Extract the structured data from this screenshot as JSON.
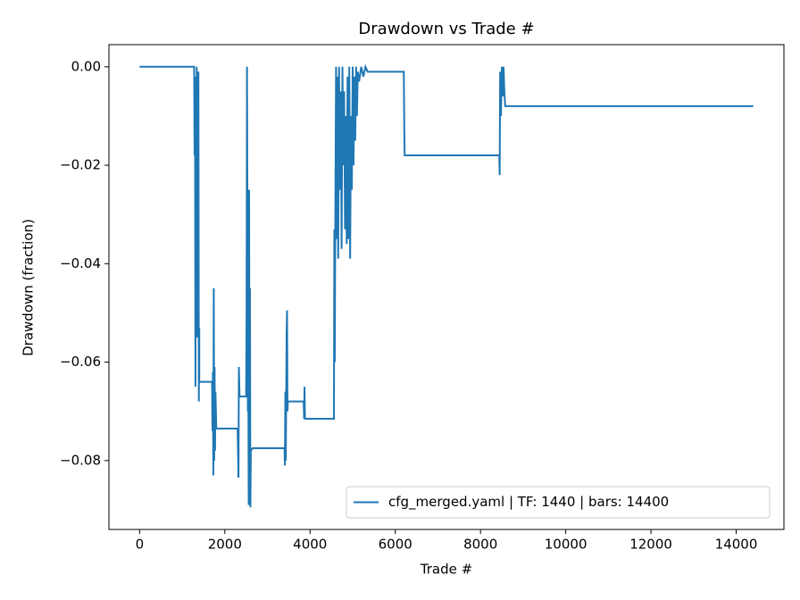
{
  "chart_data": {
    "type": "line",
    "title": "Drawdown vs Trade #",
    "xlabel": "Trade #",
    "ylabel": "Drawdown (fraction)",
    "xlim": [
      -720,
      15120
    ],
    "ylim": [
      -0.094,
      0.0045
    ],
    "xticks": [
      0,
      2000,
      4000,
      6000,
      8000,
      10000,
      12000,
      14000
    ],
    "yticks": [
      {
        "value": -0.08,
        "label": "−0.08"
      },
      {
        "value": -0.06,
        "label": "−0.06"
      },
      {
        "value": -0.04,
        "label": "−0.04"
      },
      {
        "value": -0.02,
        "label": "−0.02"
      },
      {
        "value": 0,
        "label": "0.00"
      }
    ],
    "grid": false,
    "legend": "lower right",
    "x": [
      0,
      1280,
      1290,
      1300,
      1310,
      1320,
      1330,
      1340,
      1350,
      1360,
      1370,
      1380,
      1390,
      1400,
      1400,
      1700,
      1710,
      1720,
      1730,
      1740,
      1750,
      1760,
      1770,
      1780,
      1800,
      2300,
      2320,
      2330,
      2345,
      2500,
      2510,
      2520,
      2530,
      2540,
      2550,
      2560,
      2570,
      2580,
      2590,
      2600,
      2610,
      2650,
      3400,
      3410,
      3420,
      3430,
      3450,
      3460,
      3470,
      3480,
      3850,
      3860,
      3870,
      3880,
      4560,
      4570,
      4580,
      4590,
      4610,
      4620,
      4640,
      4660,
      4680,
      4700,
      4720,
      4740,
      4760,
      4780,
      4800,
      4820,
      4840,
      4860,
      4880,
      4900,
      4920,
      4940,
      4960,
      4980,
      5000,
      5020,
      5040,
      5060,
      5080,
      5100,
      5120,
      5150,
      5200,
      5250,
      5300,
      5350,
      6200,
      6210,
      6220,
      8440,
      8450,
      8460,
      8480,
      8500,
      8520,
      8540,
      8560,
      8580,
      14400
    ],
    "series": [
      {
        "name": "cfg_merged.yaml | TF: 1440 | bars: 14400",
        "color": "#1f77b4",
        "values": [
          0,
          0,
          -0.018,
          -0.002,
          -0.065,
          -0.01,
          -0.048,
          0,
          -0.055,
          -0.02,
          -0.05,
          -0.001,
          -0.068,
          -0.053,
          -0.064,
          -0.064,
          -0.074,
          -0.062,
          -0.083,
          -0.045,
          -0.08,
          -0.061,
          -0.078,
          -0.066,
          -0.0735,
          -0.0735,
          -0.0835,
          -0.061,
          -0.067,
          -0.067,
          -0.05,
          0,
          -0.03,
          -0.07,
          -0.06,
          -0.089,
          -0.025,
          -0.085,
          -0.045,
          -0.0895,
          -0.078,
          -0.0775,
          -0.0775,
          -0.081,
          -0.066,
          -0.08,
          -0.054,
          -0.0495,
          -0.07,
          -0.068,
          -0.068,
          -0.0715,
          -0.065,
          -0.0715,
          -0.0715,
          -0.033,
          -0.06,
          -0.035,
          0,
          -0.035,
          -0.002,
          -0.039,
          0,
          -0.025,
          -0.005,
          -0.037,
          0,
          -0.02,
          -0.005,
          -0.033,
          -0.01,
          -0.036,
          -0.002,
          -0.035,
          0,
          -0.039,
          -0.01,
          -0.025,
          0,
          -0.02,
          -0.002,
          -0.015,
          0,
          -0.01,
          -0.001,
          -0.003,
          0,
          -0.002,
          0,
          -0.001,
          -0.001,
          -0.012,
          -0.018,
          -0.018,
          -0.022,
          -0.001,
          -0.01,
          0,
          -0.006,
          0,
          -0.005,
          -0.008,
          -0.008
        ]
      }
    ]
  }
}
